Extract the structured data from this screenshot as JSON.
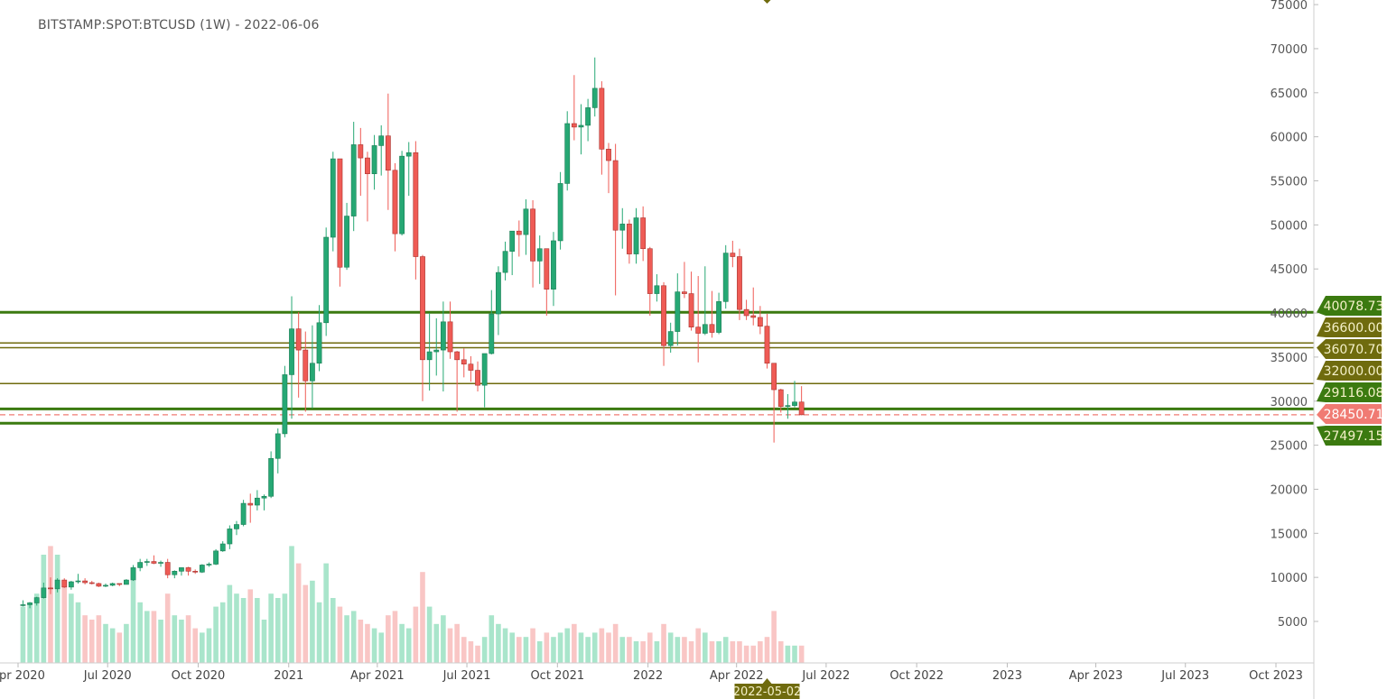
{
  "chart_data": {
    "type": "candlestick",
    "title": "BITSTAMP:SPOT:BTCUSD (1W) - 2022-06-06",
    "interval": "1W",
    "first_candle": "2020-04-06",
    "ylim": [
      0,
      75000
    ],
    "y_ticks": [
      5000,
      10000,
      15000,
      20000,
      25000,
      30000,
      35000,
      40000,
      45000,
      50000,
      55000,
      60000,
      65000,
      70000,
      75000
    ],
    "x_ticks": [
      {
        "label": "Apr 2020",
        "date": "2020-04-01"
      },
      {
        "label": "Jul 2020",
        "date": "2020-07-01"
      },
      {
        "label": "Oct 2020",
        "date": "2020-10-01"
      },
      {
        "label": "2021",
        "date": "2021-01-01"
      },
      {
        "label": "Apr 2021",
        "date": "2021-04-01"
      },
      {
        "label": "Jul 2021",
        "date": "2021-07-01"
      },
      {
        "label": "Oct 2021",
        "date": "2021-10-01"
      },
      {
        "label": "2022",
        "date": "2022-01-01"
      },
      {
        "label": "Apr 2022",
        "date": "2022-04-01"
      },
      {
        "label": "Jul 2022",
        "date": "2022-07-01"
      },
      {
        "label": "Oct 2022",
        "date": "2022-10-01"
      },
      {
        "label": "2023",
        "date": "2023-01-01"
      },
      {
        "label": "Apr 2023",
        "date": "2023-04-01"
      },
      {
        "label": "Jul 2023",
        "date": "2023-07-01"
      },
      {
        "label": "Oct 2023",
        "date": "2023-10-01"
      }
    ],
    "grid": false,
    "candle_fields": [
      "open",
      "high",
      "low",
      "close",
      "volume_relative"
    ],
    "candles": [
      [
        6800,
        7400,
        6700,
        6900,
        65
      ],
      [
        6900,
        7200,
        6500,
        7100,
        70
      ],
      [
        7100,
        7800,
        6800,
        7700,
        80
      ],
      [
        7700,
        9400,
        7600,
        8800,
        125
      ],
      [
        8800,
        10000,
        8100,
        8700,
        135
      ],
      [
        8700,
        9900,
        8300,
        9700,
        125
      ],
      [
        9700,
        9900,
        8800,
        8900,
        95
      ],
      [
        8900,
        9600,
        8600,
        9500,
        80
      ],
      [
        9500,
        10400,
        9300,
        9600,
        70
      ],
      [
        9600,
        9900,
        9200,
        9400,
        55
      ],
      [
        9400,
        9600,
        9200,
        9300,
        50
      ],
      [
        9300,
        9400,
        8900,
        9000,
        55
      ],
      [
        9000,
        9300,
        8900,
        9100,
        45
      ],
      [
        9100,
        9400,
        9000,
        9300,
        40
      ],
      [
        9300,
        9300,
        9000,
        9200,
        35
      ],
      [
        9200,
        9800,
        9200,
        9700,
        45
      ],
      [
        9700,
        11400,
        9600,
        11100,
        95
      ],
      [
        11100,
        12100,
        10700,
        11700,
        70
      ],
      [
        11700,
        12100,
        11300,
        11800,
        60
      ],
      [
        11800,
        12500,
        11500,
        11600,
        60
      ],
      [
        11600,
        11900,
        11200,
        11700,
        50
      ],
      [
        11700,
        12100,
        9900,
        10300,
        80
      ],
      [
        10300,
        10800,
        9900,
        10700,
        55
      ],
      [
        10700,
        11100,
        10200,
        11100,
        50
      ],
      [
        11100,
        11200,
        10200,
        10700,
        55
      ],
      [
        10700,
        10900,
        10400,
        10600,
        40
      ],
      [
        10600,
        11500,
        10500,
        11400,
        35
      ],
      [
        11400,
        11700,
        11200,
        11500,
        40
      ],
      [
        11500,
        13200,
        11400,
        13000,
        65
      ],
      [
        13000,
        14100,
        12900,
        13800,
        70
      ],
      [
        13800,
        15900,
        13200,
        15500,
        90
      ],
      [
        15500,
        16400,
        14800,
        16000,
        80
      ],
      [
        16000,
        18800,
        15800,
        18400,
        75
      ],
      [
        18400,
        19500,
        16200,
        18200,
        85
      ],
      [
        18200,
        19900,
        17600,
        19000,
        75
      ],
      [
        19000,
        19400,
        17600,
        19200,
        50
      ],
      [
        19200,
        24300,
        19000,
        23500,
        80
      ],
      [
        23500,
        26900,
        21800,
        26300,
        75
      ],
      [
        26300,
        34000,
        25900,
        33000,
        80
      ],
      [
        33000,
        41900,
        28000,
        38200,
        135
      ],
      [
        38200,
        40100,
        30400,
        35800,
        115
      ],
      [
        35800,
        37900,
        28800,
        32300,
        90
      ],
      [
        32300,
        38600,
        29200,
        34300,
        95
      ],
      [
        34300,
        40900,
        33400,
        38900,
        70
      ],
      [
        38900,
        49700,
        37400,
        48600,
        115
      ],
      [
        48600,
        58300,
        47000,
        57500,
        75
      ],
      [
        57500,
        57500,
        43000,
        45200,
        65
      ],
      [
        45200,
        52500,
        44900,
        51000,
        55
      ],
      [
        51000,
        61700,
        49300,
        59100,
        60
      ],
      [
        59100,
        61000,
        53300,
        57600,
        50
      ],
      [
        57600,
        58300,
        50400,
        55800,
        45
      ],
      [
        55800,
        60200,
        54000,
        59000,
        40
      ],
      [
        59000,
        61300,
        55600,
        60100,
        35
      ],
      [
        60100,
        64900,
        51700,
        56200,
        55
      ],
      [
        56200,
        57000,
        47000,
        49000,
        60
      ],
      [
        49000,
        58400,
        48800,
        57800,
        45
      ],
      [
        57800,
        59400,
        53300,
        58200,
        40
      ],
      [
        58200,
        59500,
        43800,
        46400,
        65
      ],
      [
        46400,
        46600,
        30000,
        34700,
        105
      ],
      [
        34700,
        40000,
        31200,
        35600,
        65
      ],
      [
        35600,
        39400,
        32900,
        35800,
        45
      ],
      [
        35800,
        41300,
        31100,
        39000,
        55
      ],
      [
        39000,
        41300,
        34800,
        35600,
        40
      ],
      [
        35600,
        35700,
        28800,
        34700,
        45
      ],
      [
        34700,
        36000,
        32700,
        34200,
        30
      ],
      [
        34200,
        35100,
        32200,
        33500,
        25
      ],
      [
        33500,
        34500,
        31100,
        31800,
        20
      ],
      [
        31800,
        35400,
        29300,
        35400,
        30
      ],
      [
        35400,
        42600,
        35300,
        39900,
        55
      ],
      [
        39900,
        45300,
        37500,
        44600,
        45
      ],
      [
        44600,
        48100,
        43700,
        47000,
        40
      ],
      [
        47000,
        49300,
        44300,
        49300,
        35
      ],
      [
        49300,
        50500,
        46400,
        48900,
        30
      ],
      [
        48900,
        52900,
        46600,
        51800,
        30
      ],
      [
        51800,
        52800,
        42900,
        45900,
        40
      ],
      [
        45900,
        48800,
        43300,
        47300,
        25
      ],
      [
        47300,
        47300,
        39700,
        42700,
        35
      ],
      [
        42700,
        49200,
        40800,
        48200,
        30
      ],
      [
        48200,
        56000,
        47200,
        54700,
        35
      ],
      [
        54700,
        62900,
        53900,
        61500,
        40
      ],
      [
        61500,
        67000,
        59600,
        61100,
        45
      ],
      [
        61100,
        63700,
        58000,
        61300,
        35
      ],
      [
        61300,
        64300,
        59500,
        63300,
        30
      ],
      [
        63300,
        69000,
        62300,
        65500,
        35
      ],
      [
        65500,
        66300,
        55700,
        58600,
        40
      ],
      [
        58600,
        59300,
        53600,
        57300,
        35
      ],
      [
        57300,
        59200,
        42000,
        49400,
        45
      ],
      [
        49400,
        51900,
        47300,
        50100,
        30
      ],
      [
        50100,
        50600,
        45600,
        46700,
        30
      ],
      [
        46700,
        51900,
        45600,
        50800,
        25
      ],
      [
        50800,
        52100,
        45900,
        47300,
        25
      ],
      [
        47300,
        47500,
        39700,
        42200,
        35
      ],
      [
        42200,
        44400,
        41300,
        43100,
        25
      ],
      [
        43100,
        43500,
        34000,
        36300,
        45
      ],
      [
        36300,
        38900,
        35500,
        37900,
        35
      ],
      [
        37900,
        44500,
        36300,
        42400,
        30
      ],
      [
        42400,
        45800,
        41700,
        42200,
        30
      ],
      [
        42200,
        44700,
        38000,
        38400,
        25
      ],
      [
        38400,
        44200,
        34400,
        37700,
        40
      ],
      [
        37700,
        45300,
        37500,
        38700,
        35
      ],
      [
        38700,
        42500,
        37200,
        37800,
        25
      ],
      [
        37800,
        42300,
        37600,
        41300,
        25
      ],
      [
        41300,
        47700,
        40500,
        46800,
        30
      ],
      [
        46800,
        48200,
        45200,
        46400,
        25
      ],
      [
        46400,
        47300,
        39200,
        40400,
        25
      ],
      [
        40400,
        41500,
        39200,
        39700,
        20
      ],
      [
        39700,
        42900,
        38600,
        39500,
        20
      ],
      [
        39500,
        40800,
        37600,
        38500,
        25
      ],
      [
        38500,
        39900,
        33700,
        34300,
        30
      ],
      [
        34300,
        34300,
        25300,
        31300,
        60
      ],
      [
        31300,
        31400,
        28700,
        29400,
        25
      ],
      [
        29400,
        30800,
        28000,
        29500,
        20
      ],
      [
        29500,
        32300,
        29300,
        29900,
        20
      ],
      [
        29900,
        31700,
        28400,
        28450,
        20
      ]
    ],
    "horizontal_levels": [
      {
        "label": "40078.73",
        "value": 40078.73,
        "style": "thick",
        "color": "#3b7a10"
      },
      {
        "label": "36600.00",
        "value": 36600.0,
        "style": "thin",
        "color": "#6f6b0e"
      },
      {
        "label": "36070.70",
        "value": 36070.7,
        "style": "thin",
        "color": "#6f6b0e"
      },
      {
        "label": "32000.00",
        "value": 32000.0,
        "style": "thin",
        "color": "#6f6b0e"
      },
      {
        "label": "29116.08",
        "value": 29116.08,
        "style": "thick",
        "color": "#3b7a10"
      },
      {
        "label": "28450.71",
        "value": 28450.71,
        "style": "dashed",
        "color": "#f07b73"
      },
      {
        "label": "27497.15",
        "value": 27497.15,
        "style": "thick",
        "color": "#3b7a10"
      }
    ],
    "crosshair_date_label": "2022-05-02",
    "colors": {
      "up": "#26a874",
      "down": "#ef5b55",
      "up_volume": "#a9e5cb",
      "down_volume": "#f9c6c5",
      "axis_text": "#555555"
    }
  }
}
